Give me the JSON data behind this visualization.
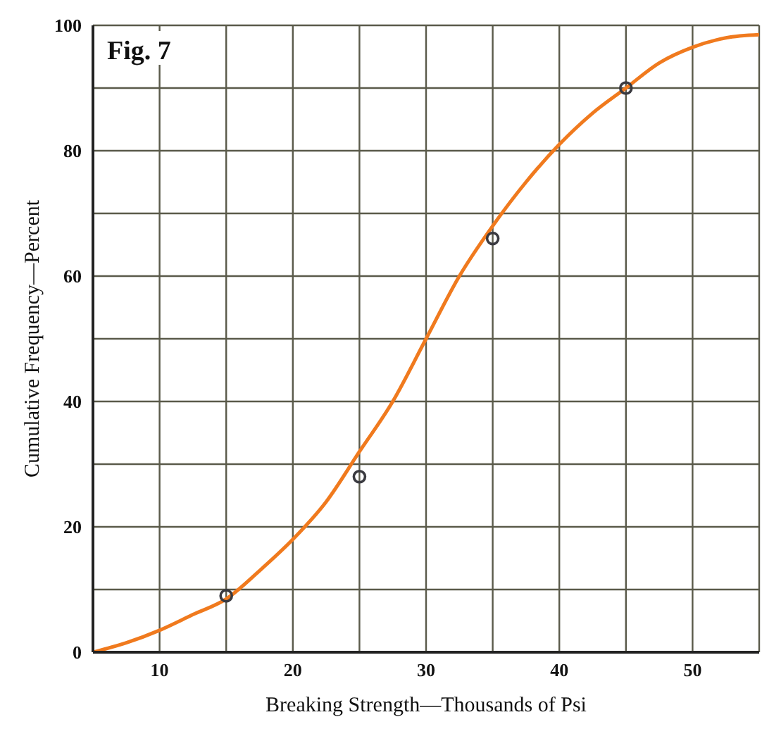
{
  "chart_data": {
    "type": "line",
    "title": "Fig. 7",
    "xlabel": "Breaking Strength—Thousands of Psi",
    "ylabel": "Cumulative Frequency—Percent",
    "xlim": [
      5,
      55
    ],
    "xticks": [
      {
        "value": 5,
        "label": null
      },
      10,
      {
        "value": 15,
        "label": null
      },
      20,
      {
        "value": 25,
        "label": null
      },
      30,
      {
        "value": 35,
        "label": null
      },
      40,
      {
        "value": 45,
        "label": null
      },
      50,
      {
        "value": 55,
        "label": null
      }
    ],
    "ylim": [
      0,
      100
    ],
    "yticks": [
      0,
      {
        "value": 10,
        "label": null
      },
      20,
      {
        "value": 30,
        "label": null
      },
      40,
      {
        "value": 50,
        "label": null
      },
      60,
      {
        "value": 70,
        "label": null
      },
      80,
      {
        "value": 90,
        "label": null
      },
      100
    ],
    "grid": true,
    "series": [
      {
        "color": "#f07a1e",
        "marker": "none",
        "line_style": "solid",
        "x": [
          5,
          7.5,
          10,
          12.5,
          15,
          17.5,
          20,
          22.5,
          25,
          27.5,
          30,
          32.5,
          35,
          37.5,
          40,
          42.5,
          45,
          47.5,
          50,
          52.5,
          55
        ],
        "values": [
          0,
          1.5,
          3.5,
          6,
          8.5,
          13,
          18,
          24,
          32,
          40,
          50,
          60,
          68,
          75,
          81,
          86,
          90,
          94,
          96.5,
          98,
          98.5
        ]
      },
      {
        "type": "scatter",
        "color": "#3a3a40",
        "marker": "circle",
        "x": [
          15,
          25,
          35,
          45
        ],
        "values": [
          9,
          28,
          66,
          90
        ]
      }
    ]
  }
}
